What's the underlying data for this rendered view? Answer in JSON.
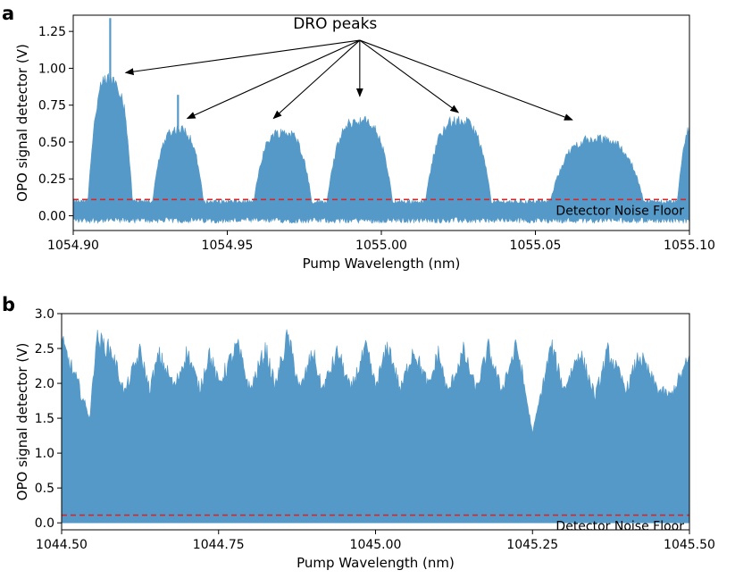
{
  "chart_data": [
    {
      "panel": "a",
      "type": "area",
      "xlabel": "Pump Wavelength (nm)",
      "ylabel": "OPO signal detector (V)",
      "xlim": [
        1054.9,
        1055.1
      ],
      "ylim": [
        -0.1,
        1.36
      ],
      "xticks": [
        1054.9,
        1054.95,
        1055.0,
        1055.05,
        1055.1
      ],
      "xtick_labels": [
        "1054.90",
        "1054.95",
        "1055.00",
        "1055.05",
        "1055.10"
      ],
      "yticks": [
        0.0,
        0.25,
        0.5,
        0.75,
        1.0,
        1.25
      ],
      "ytick_labels": [
        "0.00",
        "0.25",
        "0.50",
        "0.75",
        "1.00",
        "1.25"
      ],
      "noise_floor": 0.11,
      "noise_label": "Detector Noise Floor",
      "series_color": "#5599c8",
      "noise_color": "#d62728",
      "baseline_band": [
        -0.05,
        0.08
      ],
      "peaks": [
        {
          "center": 1054.912,
          "height": 0.98,
          "width": 0.006,
          "spike": 1.34
        },
        {
          "center": 1054.934,
          "height": 0.62,
          "width": 0.007,
          "spike": 0.82
        },
        {
          "center": 1054.968,
          "height": 0.6,
          "width": 0.008
        },
        {
          "center": 1054.993,
          "height": 0.68,
          "width": 0.009
        },
        {
          "center": 1055.025,
          "height": 0.68,
          "width": 0.009
        },
        {
          "center": 1055.07,
          "height": 0.55,
          "width": 0.013
        },
        {
          "center": 1055.102,
          "height": 0.65,
          "width": 0.005
        }
      ],
      "annotation": {
        "text": "DRO peaks",
        "text_at": [
          1054.985,
          1.27
        ],
        "origin": [
          1054.993,
          1.19
        ],
        "targets": [
          [
            1054.917,
            0.97
          ],
          [
            1054.937,
            0.66
          ],
          [
            1054.965,
            0.66
          ],
          [
            1054.993,
            0.81
          ],
          [
            1055.025,
            0.7
          ],
          [
            1055.062,
            0.65
          ]
        ]
      }
    },
    {
      "panel": "b",
      "type": "area",
      "xlabel": "Pump Wavelength (nm)",
      "ylabel": "OPO signal detector (V)",
      "xlim": [
        1044.5,
        1045.5
      ],
      "ylim": [
        -0.1,
        3.0
      ],
      "xticks": [
        1044.5,
        1044.75,
        1045.0,
        1045.25,
        1045.5
      ],
      "xtick_labels": [
        "1044.50",
        "1044.75",
        "1045.00",
        "1045.25",
        "1045.50"
      ],
      "yticks": [
        0.0,
        0.5,
        1.0,
        1.5,
        2.0,
        2.5,
        3.0
      ],
      "ytick_labels": [
        "0.0",
        "0.5",
        "1.0",
        "1.5",
        "2.0",
        "2.5",
        "3.0"
      ],
      "noise_floor": 0.11,
      "noise_label": "Detector Noise Floor",
      "series_color": "#5599c8",
      "noise_color": "#d62728",
      "fill_floor": 0.0,
      "upper_envelope": {
        "x": [
          1044.5,
          1044.53,
          1044.545,
          1044.555,
          1044.58,
          1044.6,
          1044.625,
          1044.64,
          1044.655,
          1044.68,
          1044.7,
          1044.72,
          1044.735,
          1044.75,
          1044.78,
          1044.8,
          1044.825,
          1044.84,
          1044.86,
          1044.88,
          1044.9,
          1044.915,
          1044.94,
          1044.96,
          1044.985,
          1045.0,
          1045.02,
          1045.04,
          1045.06,
          1045.085,
          1045.1,
          1045.115,
          1045.14,
          1045.16,
          1045.18,
          1045.2,
          1045.225,
          1045.24,
          1045.25,
          1045.28,
          1045.3,
          1045.325,
          1045.35,
          1045.37,
          1045.4,
          1045.42,
          1045.45,
          1045.47,
          1045.5
        ],
        "top": [
          2.75,
          2.0,
          1.5,
          2.8,
          2.6,
          1.95,
          2.6,
          2.0,
          2.55,
          2.05,
          2.6,
          2.0,
          2.6,
          2.1,
          2.7,
          2.0,
          2.65,
          2.05,
          2.85,
          2.0,
          2.6,
          2.0,
          2.6,
          2.0,
          2.65,
          2.05,
          2.7,
          2.0,
          2.65,
          2.05,
          2.6,
          1.95,
          2.6,
          2.0,
          2.65,
          2.0,
          2.7,
          1.9,
          1.3,
          2.7,
          2.0,
          2.6,
          1.9,
          2.6,
          2.0,
          2.55,
          2.0,
          1.9,
          2.5
        ],
        "bottom": [
          2.05,
          1.5,
          1.45,
          2.1,
          1.95,
          1.55,
          1.95,
          1.6,
          1.9,
          1.6,
          1.95,
          1.6,
          1.9,
          1.6,
          2.0,
          1.55,
          1.95,
          1.6,
          2.1,
          1.55,
          1.95,
          1.6,
          1.95,
          1.55,
          2.0,
          1.6,
          2.0,
          1.55,
          1.95,
          1.6,
          1.9,
          1.55,
          1.95,
          1.6,
          1.95,
          1.55,
          2.0,
          1.5,
          1.25,
          2.0,
          1.6,
          1.95,
          1.5,
          1.95,
          1.6,
          1.9,
          1.6,
          1.55,
          1.85
        ]
      }
    }
  ]
}
